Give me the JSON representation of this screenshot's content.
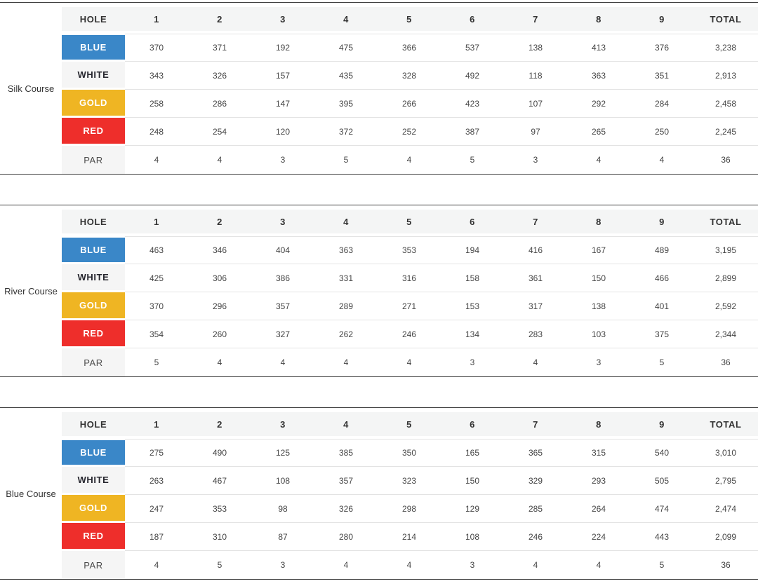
{
  "colors": {
    "blue_tee": "#3a87c8",
    "gold_tee": "#efb523",
    "red_tee": "#ee2e2b",
    "neutral_cell_bg": "#f5f5f5",
    "header_bg": "#f4f5f5",
    "row_divider": "#e3e3e3",
    "table_rule": "#3f3f3f"
  },
  "header": {
    "hole": "HOLE",
    "holes": [
      "1",
      "2",
      "3",
      "4",
      "5",
      "6",
      "7",
      "8",
      "9"
    ],
    "total": "TOTAL"
  },
  "courses": [
    {
      "name": "Silk Course",
      "rows": [
        {
          "tee": "BLUE",
          "color_key": "blue_tee",
          "values": [
            "370",
            "371",
            "192",
            "475",
            "366",
            "537",
            "138",
            "413",
            "376"
          ],
          "total": "3,238"
        },
        {
          "tee": "WHITE",
          "color_key": "neutral",
          "values": [
            "343",
            "326",
            "157",
            "435",
            "328",
            "492",
            "118",
            "363",
            "351"
          ],
          "total": "2,913"
        },
        {
          "tee": "GOLD",
          "color_key": "gold_tee",
          "values": [
            "258",
            "286",
            "147",
            "395",
            "266",
            "423",
            "107",
            "292",
            "284"
          ],
          "total": "2,458"
        },
        {
          "tee": "RED",
          "color_key": "red_tee",
          "values": [
            "248",
            "254",
            "120",
            "372",
            "252",
            "387",
            "97",
            "265",
            "250"
          ],
          "total": "2,245"
        },
        {
          "tee": "PAR",
          "color_key": "par",
          "values": [
            "4",
            "4",
            "3",
            "5",
            "4",
            "5",
            "3",
            "4",
            "4"
          ],
          "total": "36"
        }
      ]
    },
    {
      "name": "River Course",
      "rows": [
        {
          "tee": "BLUE",
          "color_key": "blue_tee",
          "values": [
            "463",
            "346",
            "404",
            "363",
            "353",
            "194",
            "416",
            "167",
            "489"
          ],
          "total": "3,195"
        },
        {
          "tee": "WHITE",
          "color_key": "neutral",
          "values": [
            "425",
            "306",
            "386",
            "331",
            "316",
            "158",
            "361",
            "150",
            "466"
          ],
          "total": "2,899"
        },
        {
          "tee": "GOLD",
          "color_key": "gold_tee",
          "values": [
            "370",
            "296",
            "357",
            "289",
            "271",
            "153",
            "317",
            "138",
            "401"
          ],
          "total": "2,592"
        },
        {
          "tee": "RED",
          "color_key": "red_tee",
          "values": [
            "354",
            "260",
            "327",
            "262",
            "246",
            "134",
            "283",
            "103",
            "375"
          ],
          "total": "2,344"
        },
        {
          "tee": "PAR",
          "color_key": "par",
          "values": [
            "5",
            "4",
            "4",
            "4",
            "4",
            "3",
            "4",
            "3",
            "5"
          ],
          "total": "36"
        }
      ]
    },
    {
      "name": "Blue Course",
      "rows": [
        {
          "tee": "BLUE",
          "color_key": "blue_tee",
          "values": [
            "275",
            "490",
            "125",
            "385",
            "350",
            "165",
            "365",
            "315",
            "540"
          ],
          "total": "3,010"
        },
        {
          "tee": "WHITE",
          "color_key": "neutral",
          "values": [
            "263",
            "467",
            "108",
            "357",
            "323",
            "150",
            "329",
            "293",
            "505"
          ],
          "total": "2,795"
        },
        {
          "tee": "GOLD",
          "color_key": "gold_tee",
          "values": [
            "247",
            "353",
            "98",
            "326",
            "298",
            "129",
            "285",
            "264",
            "474"
          ],
          "total": "2,474"
        },
        {
          "tee": "RED",
          "color_key": "red_tee",
          "values": [
            "187",
            "310",
            "87",
            "280",
            "214",
            "108",
            "246",
            "224",
            "443"
          ],
          "total": "2,099"
        },
        {
          "tee": "PAR",
          "color_key": "par",
          "values": [
            "4",
            "5",
            "3",
            "4",
            "4",
            "3",
            "4",
            "4",
            "5"
          ],
          "total": "36"
        }
      ]
    }
  ]
}
